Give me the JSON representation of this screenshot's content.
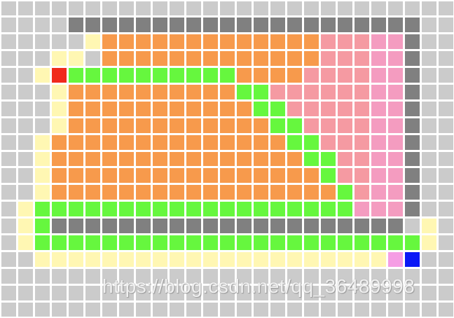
{
  "grid": {
    "cols": 27,
    "rows": 19,
    "legend": {
      ".": "#cbcbcb",
      "G": "#808080",
      "Y": "#fff7b3",
      "O": "#f79a4c",
      "P": "#f59aa2",
      "K": "#f49cc0",
      "L": "#66f73e",
      "R": "#f02a1c",
      "B": "#0b18f6",
      "M": "#f59de4"
    },
    "layout": [
      "...........................",
      "....GGGGGGGGGGGGGGGGGGGGG..",
      ".....YOOOOOOOOOOOOOPPPKKG..",
      "...YY.OOOOOOOOOOOOOPPPKKG..",
      "..YRLLLLLLLLLLOOOOPPPPKKG..",
      "...YOOOOOOOOOOLLPPPPPPKKG..",
      "...YOOOOOOOOOOOLLPPPPPKKG..",
      "...YOOOOOOOOOOOOLLPPPPKKG..",
      "..YOOOOOOOOOOOOOOLLPPPKKG..",
      "..YOOOOOOOOOOOOOOOLLPPKKG..",
      "..YOOOOOOOOOOOOOOOOLPPKKG..",
      "..YOOOOOOOOOOOOOOOOOLPKKG..",
      ".YLLLLLLLLLLLLLLLLLLLKKKG..",
      ".YLGGGGGGGGGGGGGGGGGGGGG.Y.",
      ".YLLLLLLLLLLLLLLLLLLLLLLLY.",
      "..YYYYYYYYYYYYYYYYYYYYYMB..",
      "...........................",
      "...........................",
      "..........................."
    ]
  },
  "markers": {
    "start": "red-cell",
    "end": "blue-cell"
  },
  "watermark": "https://blog.csdn.net/qq_36489998"
}
